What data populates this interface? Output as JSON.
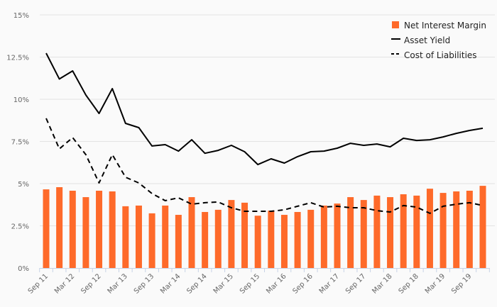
{
  "chart_data": {
    "type": "bar+line",
    "title": "",
    "xlabel": "",
    "ylabel": "",
    "ylim": [
      0,
      15
    ],
    "yticks": [
      "0%",
      "2.5%",
      "5%",
      "7.5%",
      "10%",
      "12.5%",
      "15%"
    ],
    "ytick_values": [
      0,
      2.5,
      5,
      7.5,
      10,
      12.5,
      15
    ],
    "xtick_labels": [
      "Sep 11",
      "Mar 12",
      "Sep 12",
      "Mar 13",
      "Sep 13",
      "Mar 14",
      "Sep 14",
      "Mar 15",
      "Sep 15",
      "Mar 16",
      "Sep 16",
      "Mar 17",
      "Sep 17",
      "Mar 18",
      "Sep 18",
      "Mar 19",
      "Sep 19"
    ],
    "grid": true,
    "legend_position": "top-right",
    "colors": {
      "bar": "#fe6a2a",
      "line": "#000000",
      "grid": "#e3e3e3",
      "axis": "#c8d3e6"
    },
    "series": [
      {
        "name": "Net Interest Margin",
        "type": "bar",
        "values": [
          4.66,
          4.79,
          4.58,
          4.2,
          4.58,
          4.54,
          3.66,
          3.7,
          3.24,
          3.7,
          3.15,
          4.2,
          3.32,
          3.45,
          4.03,
          3.87,
          3.1,
          3.4,
          3.15,
          3.32,
          3.45,
          3.7,
          3.82,
          4.2,
          4.03,
          4.29,
          4.2,
          4.37,
          4.29,
          4.7,
          4.45,
          4.54,
          4.58,
          4.87
        ]
      },
      {
        "name": "Asset Yield",
        "type": "line",
        "dash": false,
        "values": [
          12.73,
          11.2,
          11.68,
          10.25,
          9.16,
          10.63,
          8.57,
          8.32,
          7.23,
          7.31,
          6.93,
          7.6,
          6.8,
          6.97,
          7.27,
          6.89,
          6.13,
          6.47,
          6.22,
          6.6,
          6.89,
          6.93,
          7.1,
          7.39,
          7.27,
          7.35,
          7.18,
          7.69,
          7.56,
          7.6,
          7.77,
          7.98,
          8.15,
          8.28
        ]
      },
      {
        "name": "Cost of Liabilities",
        "type": "line",
        "dash": true,
        "values": [
          8.87,
          7.06,
          7.73,
          6.72,
          5.04,
          6.72,
          5.38,
          5.04,
          4.41,
          3.99,
          4.16,
          3.78,
          3.87,
          3.91,
          3.57,
          3.36,
          3.36,
          3.36,
          3.45,
          3.66,
          3.87,
          3.61,
          3.66,
          3.57,
          3.57,
          3.4,
          3.32,
          3.7,
          3.61,
          3.24,
          3.66,
          3.78,
          3.87,
          3.7
        ]
      }
    ]
  }
}
